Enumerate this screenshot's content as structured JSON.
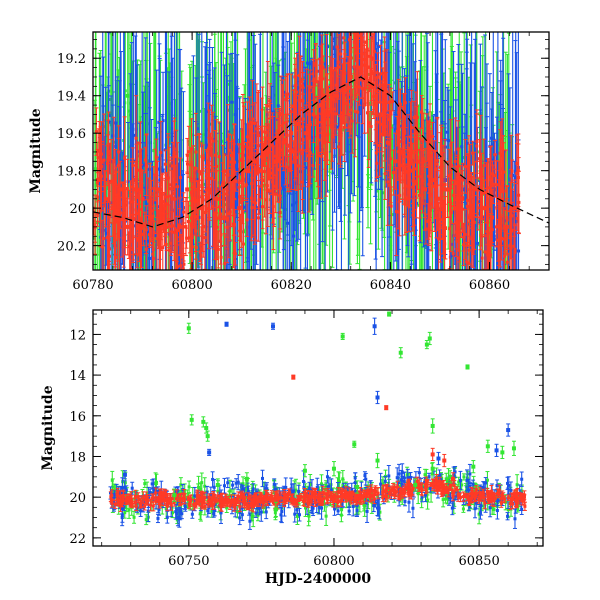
{
  "colors": {
    "green": "#33e633",
    "blue": "#1a52e6",
    "red": "#ff3a26",
    "axis": "#000000",
    "trend": "#000000"
  },
  "chart_data": [
    {
      "type": "scatter",
      "title": "",
      "xlabel": "",
      "ylabel": "Magnitude",
      "xlim": [
        60780,
        60872
      ],
      "ylim": [
        20.33,
        19.06
      ],
      "y_inverted": true,
      "grid": false,
      "xticks": [
        60780,
        60800,
        60820,
        60840,
        60860
      ],
      "xtick_labels": [
        "60780",
        "60800",
        "60820",
        "60840",
        "60860"
      ],
      "yticks": [
        19.2,
        19.4,
        19.6,
        19.8,
        20,
        20.2
      ],
      "ytick_labels": [
        "19.2",
        "19.4",
        "19.6",
        "19.8",
        "20",
        "20.2"
      ],
      "series": [
        {
          "color": "green",
          "x": [
            60781,
            60783,
            60785,
            60787,
            60789,
            60791,
            60793,
            60795,
            60797,
            60800,
            60802,
            60804,
            60806,
            60808,
            60810,
            60812,
            60815,
            60817,
            60819,
            60821,
            60823,
            60825,
            60827,
            60829,
            60831,
            60833,
            60836,
            60838,
            60840,
            60842,
            60844,
            60846,
            60848,
            60850,
            60852,
            60854,
            60856,
            60858,
            60860,
            60862,
            60864
          ],
          "y": [
            19.95,
            19.6,
            19.85,
            19.4,
            20.05,
            19.75,
            19.9,
            19.7,
            20.0,
            19.85,
            19.65,
            19.8,
            19.9,
            19.6,
            19.95,
            19.75,
            19.7,
            19.55,
            19.8,
            19.6,
            19.5,
            19.45,
            19.4,
            19.3,
            19.35,
            19.25,
            19.5,
            19.7,
            19.9,
            19.6,
            19.75,
            19.85,
            19.7,
            19.95,
            19.8,
            19.9,
            20.0,
            19.85,
            20.05,
            19.9,
            19.95
          ],
          "err": [
            0.3,
            0.3,
            0.4,
            0.4,
            0.3,
            0.4,
            0.3,
            0.3,
            0.3,
            0.35,
            0.35,
            0.3,
            0.3,
            0.4,
            0.3,
            0.35,
            0.3,
            0.35,
            0.3,
            0.3,
            0.35,
            0.3,
            0.3,
            0.3,
            0.35,
            0.3,
            0.4,
            0.35,
            0.3,
            0.35,
            0.3,
            0.3,
            0.35,
            0.3,
            0.3,
            0.3,
            0.3,
            0.35,
            0.3,
            0.3,
            0.3
          ]
        },
        {
          "color": "blue",
          "x": [
            60782,
            60784,
            60786,
            60788,
            60790,
            60792,
            60794,
            60796,
            60798,
            60801,
            60803,
            60805,
            60807,
            60809,
            60811,
            60813,
            60816,
            60818,
            60820,
            60822,
            60824,
            60826,
            60828,
            60830,
            60832,
            60834,
            60837,
            60839,
            60841,
            60843,
            60845,
            60847,
            60849,
            60851,
            60853,
            60855,
            60857,
            60859,
            60861,
            60863,
            60865
          ],
          "y": [
            19.9,
            19.75,
            20.0,
            19.85,
            19.95,
            20.05,
            19.8,
            19.9,
            20.05,
            19.85,
            19.75,
            19.9,
            19.95,
            19.7,
            19.85,
            20.0,
            19.7,
            19.65,
            19.9,
            19.55,
            19.5,
            19.45,
            19.35,
            19.3,
            19.4,
            19.2,
            19.3,
            19.5,
            19.8,
            19.65,
            19.75,
            19.9,
            19.8,
            19.85,
            20.0,
            19.9,
            19.95,
            20.05,
            19.9,
            20.0,
            20.05
          ],
          "err": [
            0.3,
            0.3,
            0.3,
            0.3,
            0.3,
            0.3,
            0.3,
            0.3,
            0.25,
            0.3,
            0.35,
            0.3,
            0.3,
            0.35,
            0.3,
            0.3,
            0.35,
            0.35,
            0.3,
            0.35,
            0.3,
            0.35,
            0.35,
            0.3,
            0.3,
            0.3,
            0.35,
            0.35,
            0.3,
            0.3,
            0.3,
            0.3,
            0.3,
            0.3,
            0.3,
            0.3,
            0.3,
            0.3,
            0.3,
            0.3,
            0.3
          ]
        },
        {
          "color": "red",
          "x": [
            60781,
            60782.5,
            60784,
            60785.5,
            60787,
            60788.5,
            60790,
            60791.5,
            60793,
            60794.5,
            60796,
            60797.5,
            60799,
            60800.5,
            60802,
            60803.5,
            60805,
            60806.5,
            60808,
            60809.5,
            60811,
            60812.5,
            60814,
            60815.5,
            60817,
            60818.5,
            60820,
            60821.5,
            60823,
            60824.5,
            60826,
            60827.5,
            60829,
            60830.5,
            60832,
            60833.5,
            60835,
            60836.5,
            60838,
            60839.5,
            60841,
            60842.5,
            60844,
            60845.5,
            60847,
            60848.5,
            60850,
            60851.5,
            60853,
            60854.5,
            60856,
            60857.5,
            60859,
            60860.5,
            60862,
            60863.5,
            60865
          ],
          "y": [
            19.85,
            19.95,
            20.0,
            19.9,
            20.1,
            19.9,
            19.95,
            20.05,
            19.9,
            20.0,
            19.95,
            20.1,
            19.9,
            19.95,
            20.0,
            19.9,
            19.95,
            20.05,
            19.85,
            20.0,
            19.8,
            19.75,
            19.8,
            19.7,
            19.75,
            19.65,
            19.6,
            19.55,
            19.6,
            19.5,
            19.45,
            19.5,
            19.4,
            19.35,
            19.3,
            19.25,
            19.3,
            19.35,
            19.5,
            19.65,
            19.75,
            19.7,
            19.8,
            19.75,
            19.9,
            19.85,
            19.95,
            19.9,
            20.0,
            19.95,
            20.05,
            19.9,
            20.0,
            20.05,
            19.95,
            20.1,
            20.0
          ],
          "err": [
            0.15,
            0.15,
            0.15,
            0.15,
            0.15,
            0.15,
            0.15,
            0.15,
            0.15,
            0.15,
            0.15,
            0.15,
            0.15,
            0.15,
            0.15,
            0.15,
            0.15,
            0.15,
            0.15,
            0.15,
            0.15,
            0.15,
            0.15,
            0.15,
            0.15,
            0.15,
            0.15,
            0.15,
            0.15,
            0.15,
            0.15,
            0.15,
            0.15,
            0.15,
            0.15,
            0.15,
            0.15,
            0.15,
            0.15,
            0.15,
            0.15,
            0.15,
            0.15,
            0.15,
            0.15,
            0.15,
            0.15,
            0.15,
            0.15,
            0.15,
            0.15,
            0.15,
            0.15,
            0.15,
            0.15,
            0.15,
            0.15
          ]
        }
      ],
      "trend_curve": {
        "x": [
          60780,
          60786,
          60792,
          60798,
          60804,
          60810,
          60816,
          60822,
          60828,
          60834,
          60840,
          60846,
          60852,
          60858,
          60864,
          60872
        ],
        "y": [
          20.02,
          20.05,
          20.1,
          20.05,
          19.95,
          19.8,
          19.65,
          19.5,
          19.38,
          19.3,
          19.4,
          19.6,
          19.78,
          19.9,
          19.98,
          20.08
        ]
      }
    },
    {
      "type": "scatter",
      "title": "",
      "xlabel": "HJD-2400000",
      "ylabel": "Magnitude",
      "xlim": [
        60717,
        60872
      ],
      "ylim": [
        22.4,
        10.8
      ],
      "y_inverted": true,
      "grid": false,
      "xticks": [
        60750,
        60800,
        60850
      ],
      "xtick_labels": [
        "60750",
        "60800",
        "60850"
      ],
      "yticks": [
        12,
        14,
        16,
        18,
        20,
        22
      ],
      "ytick_labels": [
        "12",
        "14",
        "16",
        "18",
        "20",
        "22"
      ],
      "series": [
        {
          "color": "green",
          "x": [
            60750,
            60751,
            60755,
            60756,
            60756.5,
            60803,
            60807,
            60819,
            60823,
            60832,
            60833,
            60834,
            60846,
            60834,
            60848,
            60853,
            60858,
            60862,
            60800,
            60790,
            60770,
            60745,
            60760,
            60815,
            60840,
            60828,
            60808,
            60780
          ],
          "y": [
            11.7,
            16.2,
            16.3,
            16.6,
            17.0,
            12.1,
            17.4,
            11.0,
            12.9,
            12.5,
            12.2,
            16.5,
            13.6,
            18.6,
            18.5,
            17.5,
            17.8,
            17.6,
            18.6,
            18.7,
            19.1,
            19.9,
            19.4,
            18.2,
            19.0,
            19.4,
            19.5,
            20.6
          ],
          "err": [
            0.25,
            0.25,
            0.25,
            0.25,
            0.25,
            0.15,
            0.15,
            0.1,
            0.25,
            0.2,
            0.3,
            0.35,
            0.1,
            0.3,
            0.3,
            0.3,
            0.3,
            0.35,
            0.35,
            0.3,
            0.3,
            0.3,
            0.3,
            0.35,
            0.3,
            0.3,
            0.3,
            0.35
          ]
        },
        {
          "color": "blue",
          "x": [
            60728,
            60757,
            60763,
            60779,
            60814,
            60815,
            60836,
            60856,
            60860
          ],
          "y": [
            18.9,
            17.8,
            11.5,
            11.6,
            11.6,
            15.1,
            18.1,
            17.7,
            16.7
          ],
          "err": [
            0.2,
            0.15,
            0.1,
            0.15,
            0.4,
            0.3,
            0.3,
            0.3,
            0.3
          ]
        },
        {
          "color": "red",
          "x": [
            60786,
            60818,
            60834,
            60838,
            60841
          ],
          "y": [
            14.1,
            15.6,
            17.9,
            18.2,
            19.1
          ],
          "err": [
            0.1,
            0.1,
            0.3,
            0.3,
            0.3
          ]
        }
      ],
      "main_band": {
        "x_start": 60723,
        "x_end": 60866,
        "level": [
          {
            "x": 60723,
            "y": 20.1
          },
          {
            "x": 60760,
            "y": 20.15
          },
          {
            "x": 60790,
            "y": 20.05
          },
          {
            "x": 60810,
            "y": 19.95
          },
          {
            "x": 60825,
            "y": 19.6
          },
          {
            "x": 60835,
            "y": 19.4
          },
          {
            "x": 60845,
            "y": 19.9
          },
          {
            "x": 60866,
            "y": 20.1
          }
        ],
        "spread": 0.55
      }
    }
  ]
}
